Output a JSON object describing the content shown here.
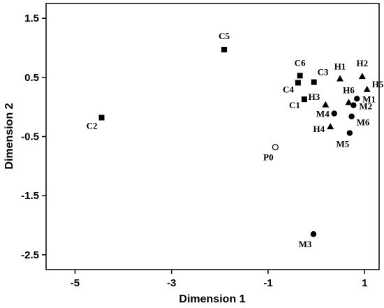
{
  "chart_data": {
    "type": "scatter",
    "title": "",
    "xlabel": "Dimension 1",
    "ylabel": "Dimension 2",
    "xlim": [
      -5.6,
      1.3
    ],
    "ylim": [
      -2.75,
      1.75
    ],
    "x_ticks": [
      -5,
      -3,
      -1,
      1
    ],
    "y_ticks": [
      1.5,
      0.5,
      -0.5,
      -1.5,
      -2.5
    ],
    "x_tick_labels": [
      "-5",
      "-3",
      "-1",
      "1"
    ],
    "y_tick_labels": [
      "1.5",
      "0.5",
      "-0.5",
      "-1.5",
      "-2.5"
    ],
    "grid": false,
    "legend": "none",
    "series": [
      {
        "marker": "square",
        "points": [
          {
            "label": "C5",
            "x": -1.91,
            "y": 0.97
          },
          {
            "label": "C6",
            "x": -0.34,
            "y": 0.53
          },
          {
            "label": "C4",
            "x": -0.38,
            "y": 0.41
          },
          {
            "label": "C3",
            "x": -0.05,
            "y": 0.42
          },
          {
            "label": "C1",
            "x": -0.25,
            "y": 0.13
          },
          {
            "label": "C2",
            "x": -4.45,
            "y": -0.18
          }
        ]
      },
      {
        "marker": "triangle",
        "points": [
          {
            "label": "H1",
            "x": 0.49,
            "y": 0.48
          },
          {
            "label": "H2",
            "x": 0.95,
            "y": 0.52
          },
          {
            "label": "H5",
            "x": 1.05,
            "y": 0.3
          },
          {
            "label": "H3",
            "x": 0.19,
            "y": 0.04
          },
          {
            "label": "H6",
            "x": 0.67,
            "y": 0.08
          },
          {
            "label": "H4",
            "x": 0.29,
            "y": -0.33
          }
        ]
      },
      {
        "marker": "circle",
        "points": [
          {
            "label": "M1",
            "x": 0.84,
            "y": 0.14
          },
          {
            "label": "M2",
            "x": 0.77,
            "y": 0.03
          },
          {
            "label": "M4",
            "x": 0.37,
            "y": -0.11
          },
          {
            "label": "M6",
            "x": 0.73,
            "y": -0.16
          },
          {
            "label": "M5",
            "x": 0.69,
            "y": -0.44
          },
          {
            "label": "M3",
            "x": -0.06,
            "y": -2.15
          }
        ]
      },
      {
        "marker": "open-circle",
        "points": [
          {
            "label": "P0",
            "x": -0.85,
            "y": -0.68
          }
        ]
      }
    ]
  }
}
